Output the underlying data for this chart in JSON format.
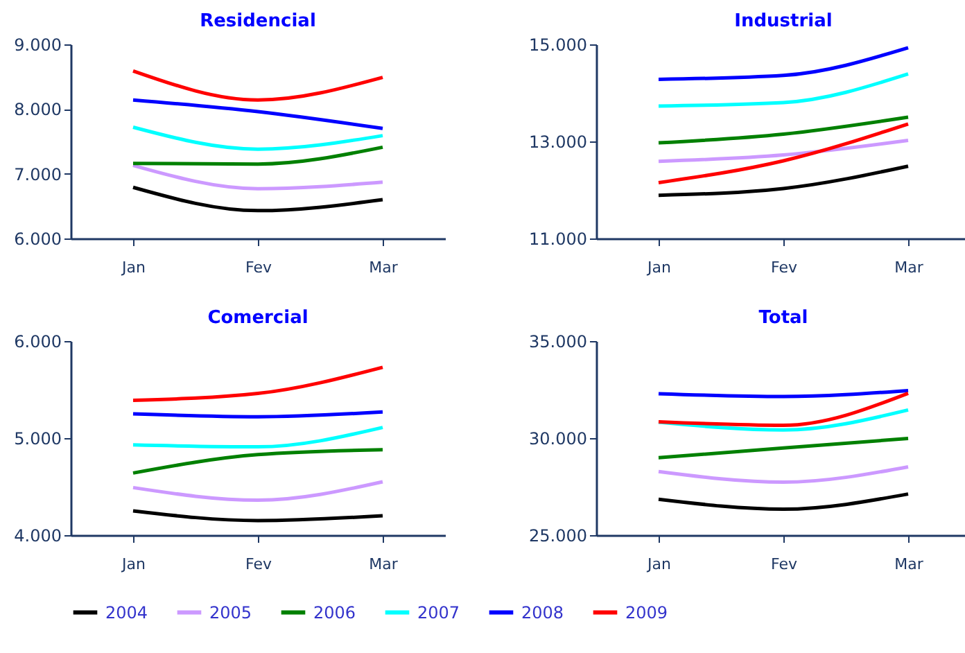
{
  "chart_data": [
    {
      "type": "line",
      "title": "Residencial",
      "categories": [
        "Jan",
        "Fev",
        "Mar"
      ],
      "ylim": [
        6000,
        9000
      ],
      "yticks": [
        {
          "value": 6000,
          "label": "6.000"
        },
        {
          "value": 7000,
          "label": "7.000"
        },
        {
          "value": 8000,
          "label": "8.000"
        },
        {
          "value": 9000,
          "label": "9.000"
        }
      ],
      "grid": false,
      "legend": "bottom",
      "series": [
        {
          "name": "2004",
          "color": "#000000",
          "values": [
            6790,
            6430,
            6600
          ]
        },
        {
          "name": "2005",
          "color": "#cc99ff",
          "values": [
            7130,
            6770,
            6870
          ]
        },
        {
          "name": "2006",
          "color": "#008000",
          "values": [
            7160,
            7150,
            7410
          ]
        },
        {
          "name": "2007",
          "color": "#00ffff",
          "values": [
            7720,
            7380,
            7590
          ]
        },
        {
          "name": "2008",
          "color": "#0000ff",
          "values": [
            8140,
            7960,
            7700
          ]
        },
        {
          "name": "2009",
          "color": "#ff0000",
          "values": [
            8590,
            8140,
            8490
          ]
        }
      ]
    },
    {
      "type": "line",
      "title": "Industrial",
      "categories": [
        "Jan",
        "Fev",
        "Mar"
      ],
      "ylim": [
        11000,
        15000
      ],
      "yticks": [
        {
          "value": 11000,
          "label": "11.000"
        },
        {
          "value": 13000,
          "label": "13.000"
        },
        {
          "value": 15000,
          "label": "15.000"
        }
      ],
      "grid": false,
      "legend": "bottom",
      "series": [
        {
          "name": "2004",
          "color": "#000000",
          "values": [
            11890,
            12030,
            12490
          ]
        },
        {
          "name": "2005",
          "color": "#cc99ff",
          "values": [
            12590,
            12720,
            13020
          ]
        },
        {
          "name": "2006",
          "color": "#008000",
          "values": [
            12970,
            13150,
            13500
          ]
        },
        {
          "name": "2007",
          "color": "#00ffff",
          "values": [
            13730,
            13800,
            14390
          ]
        },
        {
          "name": "2008",
          "color": "#0000ff",
          "values": [
            14280,
            14360,
            14930
          ]
        },
        {
          "name": "2009",
          "color": "#ff0000",
          "values": [
            12150,
            12600,
            13360
          ]
        }
      ]
    },
    {
      "type": "line",
      "title": "Comercial",
      "categories": [
        "Jan",
        "Fev",
        "Mar"
      ],
      "ylim": [
        4000,
        6000
      ],
      "yticks": [
        {
          "value": 4000,
          "label": "4.000"
        },
        {
          "value": 5000,
          "label": "5.000"
        },
        {
          "value": 6000,
          "label": "6.000"
        }
      ],
      "grid": false,
      "legend": "bottom",
      "series": [
        {
          "name": "2004",
          "color": "#000000",
          "values": [
            4250,
            4150,
            4200
          ]
        },
        {
          "name": "2005",
          "color": "#cc99ff",
          "values": [
            4490,
            4360,
            4550
          ]
        },
        {
          "name": "2006",
          "color": "#008000",
          "values": [
            4640,
            4830,
            4880
          ]
        },
        {
          "name": "2007",
          "color": "#00ffff",
          "values": [
            4930,
            4910,
            5110
          ]
        },
        {
          "name": "2008",
          "color": "#0000ff",
          "values": [
            5250,
            5220,
            5270
          ]
        },
        {
          "name": "2009",
          "color": "#ff0000",
          "values": [
            5390,
            5460,
            5730
          ]
        }
      ]
    },
    {
      "type": "line",
      "title": "Total",
      "categories": [
        "Jan",
        "Fev",
        "Mar"
      ],
      "ylim": [
        25000,
        35000
      ],
      "yticks": [
        {
          "value": 25000,
          "label": "25.000"
        },
        {
          "value": 30000,
          "label": "30.000"
        },
        {
          "value": 35000,
          "label": "35.000"
        }
      ],
      "grid": false,
      "legend": "bottom",
      "series": [
        {
          "name": "2004",
          "color": "#000000",
          "values": [
            26850,
            26340,
            27120
          ]
        },
        {
          "name": "2005",
          "color": "#cc99ff",
          "values": [
            28280,
            27730,
            28520
          ]
        },
        {
          "name": "2006",
          "color": "#008000",
          "values": [
            28990,
            29490,
            29980
          ]
        },
        {
          "name": "2007",
          "color": "#00ffff",
          "values": [
            30820,
            30420,
            31450
          ]
        },
        {
          "name": "2008",
          "color": "#0000ff",
          "values": [
            32290,
            32140,
            32450
          ]
        },
        {
          "name": "2009",
          "color": "#ff0000",
          "values": [
            30840,
            30660,
            32310
          ]
        }
      ]
    }
  ]
}
